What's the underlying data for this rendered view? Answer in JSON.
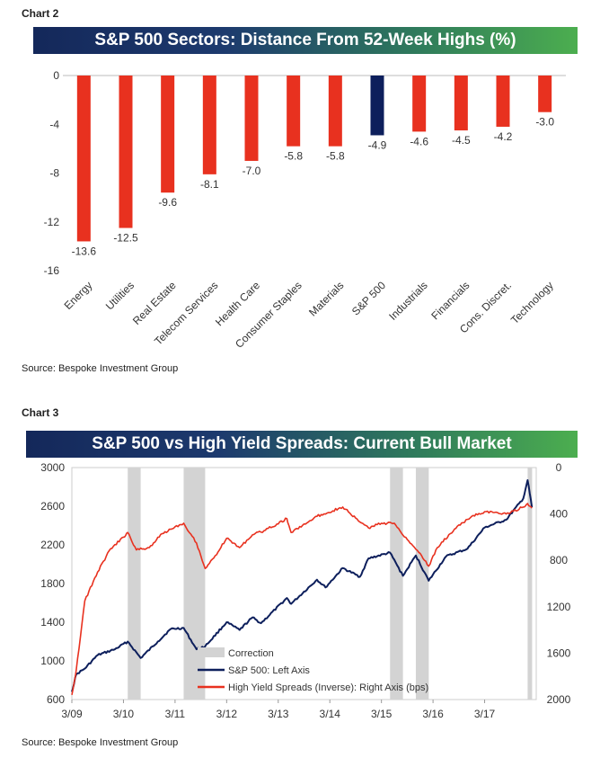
{
  "chart2": {
    "label": "Chart 2",
    "source": "Source: Bespoke Investment Group",
    "chart_data": {
      "type": "bar",
      "title": "S&P 500 Sectors: Distance From 52-Week Highs (%)",
      "categories": [
        "Energy",
        "Utilities",
        "Real Estate",
        "Telecom Services",
        "Health Care",
        "Consumer Staples",
        "Materials",
        "S&P 500",
        "Industrials",
        "Financials",
        "Cons. Discret.",
        "Technology"
      ],
      "values": [
        -13.6,
        -12.5,
        -9.6,
        -8.1,
        -7.0,
        -5.8,
        -5.8,
        -4.9,
        -4.6,
        -4.5,
        -4.2,
        -3.0
      ],
      "value_labels": [
        "-13.6",
        "-12.5",
        "-9.6",
        "-8.1",
        "-7.0",
        "-5.8",
        "-5.8",
        "-4.9",
        "-4.6",
        "-4.5",
        "-4.2",
        "-3.0"
      ],
      "highlight": "S&P 500",
      "ylim": [
        -16,
        0
      ],
      "yticks": [
        0,
        -4,
        -8,
        -12,
        -16
      ],
      "colors": {
        "bar": "#e8311f",
        "highlight": "#0d1f5c"
      }
    }
  },
  "chart3": {
    "label": "Chart 3",
    "source": "Source: Bespoke Investment Group",
    "chart_data": {
      "type": "line",
      "title": "S&P 500 vs High Yield Spreads: Current Bull Market",
      "x_tick_labels": [
        "3/09",
        "3/10",
        "3/11",
        "3/12",
        "3/13",
        "3/14",
        "3/15",
        "3/16",
        "3/17"
      ],
      "left_axis": {
        "ylim": [
          600,
          3000
        ],
        "ticks": [
          600,
          1000,
          1400,
          1800,
          2200,
          2600,
          3000
        ]
      },
      "right_axis": {
        "ylim": [
          2000,
          0
        ],
        "inverted": true,
        "ticks": [
          0,
          400,
          800,
          1200,
          1600,
          2000
        ]
      },
      "corrections": [
        [
          "2010-04",
          "2010-07"
        ],
        [
          "2011-05",
          "2011-10"
        ],
        [
          "2015-05",
          "2015-08"
        ],
        [
          "2015-11",
          "2016-02"
        ],
        [
          "2018-01",
          "2018-02"
        ]
      ],
      "legend": [
        {
          "label": "Correction",
          "color": "#d3d3d3"
        },
        {
          "label": "S&P 500: Left Axis",
          "color": "#0d1f5c"
        },
        {
          "label": "High Yield Spreads (Inverse): Right Axis (bps)",
          "color": "#e8311f"
        }
      ],
      "series": [
        {
          "name": "S&P 500: Left Axis",
          "axis": "left",
          "color": "#0d1f5c",
          "points": [
            [
              "2009-03",
              680
            ],
            [
              "2009-04",
              860
            ],
            [
              "2009-06",
              920
            ],
            [
              "2009-09",
              1060
            ],
            [
              "2010-01",
              1120
            ],
            [
              "2010-04",
              1200
            ],
            [
              "2010-07",
              1030
            ],
            [
              "2010-11",
              1200
            ],
            [
              "2011-02",
              1330
            ],
            [
              "2011-05",
              1340
            ],
            [
              "2011-08",
              1120
            ],
            [
              "2011-10",
              1150
            ],
            [
              "2012-03",
              1400
            ],
            [
              "2012-06",
              1320
            ],
            [
              "2012-09",
              1450
            ],
            [
              "2012-11",
              1390
            ],
            [
              "2013-05",
              1650
            ],
            [
              "2013-06",
              1590
            ],
            [
              "2013-12",
              1840
            ],
            [
              "2014-02",
              1760
            ],
            [
              "2014-06",
              1960
            ],
            [
              "2014-10",
              1870
            ],
            [
              "2014-12",
              2060
            ],
            [
              "2015-05",
              2120
            ],
            [
              "2015-08",
              1880
            ],
            [
              "2015-11",
              2090
            ],
            [
              "2016-02",
              1830
            ],
            [
              "2016-06",
              2080
            ],
            [
              "2016-11",
              2160
            ],
            [
              "2017-03",
              2380
            ],
            [
              "2017-08",
              2460
            ],
            [
              "2017-12",
              2680
            ],
            [
              "2018-01",
              2870
            ],
            [
              "2018-02",
              2590
            ]
          ]
        },
        {
          "name": "High Yield Spreads (Inverse): Right Axis (bps)",
          "axis": "right",
          "color": "#e8311f",
          "points": [
            [
              "2009-03",
              1960
            ],
            [
              "2009-04",
              1750
            ],
            [
              "2009-06",
              1150
            ],
            [
              "2009-09",
              900
            ],
            [
              "2009-12",
              700
            ],
            [
              "2010-03",
              600
            ],
            [
              "2010-04",
              560
            ],
            [
              "2010-06",
              710
            ],
            [
              "2010-09",
              690
            ],
            [
              "2010-12",
              570
            ],
            [
              "2011-03",
              510
            ],
            [
              "2011-05",
              480
            ],
            [
              "2011-08",
              650
            ],
            [
              "2011-10",
              870
            ],
            [
              "2011-12",
              780
            ],
            [
              "2012-03",
              610
            ],
            [
              "2012-06",
              690
            ],
            [
              "2012-09",
              580
            ],
            [
              "2012-12",
              540
            ],
            [
              "2013-05",
              440
            ],
            [
              "2013-06",
              560
            ],
            [
              "2013-12",
              420
            ],
            [
              "2014-06",
              340
            ],
            [
              "2014-10",
              470
            ],
            [
              "2014-12",
              520
            ],
            [
              "2015-03",
              480
            ],
            [
              "2015-06",
              480
            ],
            [
              "2015-09",
              620
            ],
            [
              "2015-12",
              740
            ],
            [
              "2016-02",
              850
            ],
            [
              "2016-04",
              690
            ],
            [
              "2016-08",
              530
            ],
            [
              "2016-12",
              420
            ],
            [
              "2017-03",
              380
            ],
            [
              "2017-08",
              400
            ],
            [
              "2017-12",
              340
            ],
            [
              "2018-01",
              310
            ],
            [
              "2018-02",
              350
            ]
          ]
        }
      ]
    }
  }
}
